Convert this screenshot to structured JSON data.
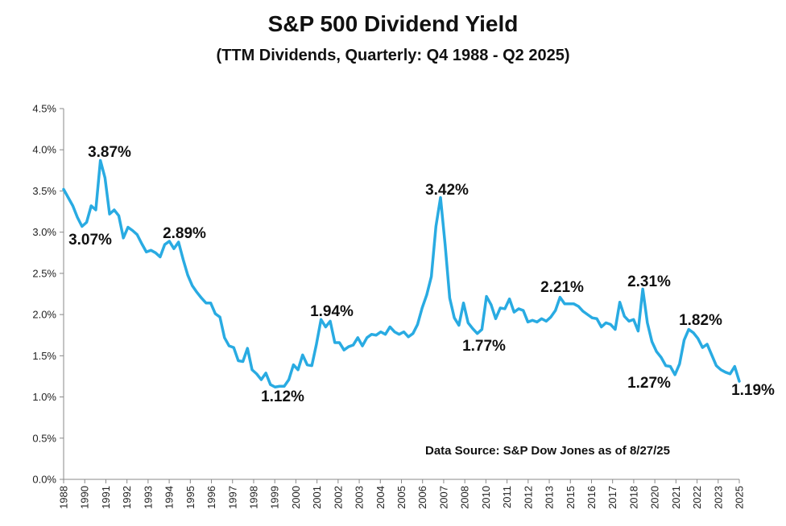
{
  "chart_data": {
    "type": "line",
    "title": "S&P 500 Dividend Yield",
    "subtitle": "(TTM Dividends, Quarterly: Q4 1988 - Q2 2025)",
    "xlabel": "",
    "ylabel": "",
    "ylim": [
      0,
      4.5
    ],
    "y_ticks": [
      "0.0%",
      "0.5%",
      "1.0%",
      "1.5%",
      "2.0%",
      "2.5%",
      "3.0%",
      "3.5%",
      "4.0%",
      "4.5%"
    ],
    "x_ticks": [
      "1988",
      "1990",
      "1991",
      "1992",
      "1993",
      "1994",
      "1995",
      "1996",
      "1997",
      "1998",
      "1999",
      "2000",
      "2001",
      "2002",
      "2003",
      "2004",
      "2005",
      "2006",
      "2007",
      "2008",
      "2010",
      "2011",
      "2012",
      "2013",
      "2015",
      "2016",
      "2017",
      "2018",
      "2020",
      "2021",
      "2022",
      "2023",
      "2025"
    ],
    "grid": false,
    "legend": "none",
    "line_color": "#29ABE2",
    "series": [
      {
        "values": [
          3.52,
          3.42,
          3.32,
          3.18,
          3.07,
          3.12,
          3.32,
          3.27,
          3.87,
          3.66,
          3.22,
          3.27,
          3.2,
          2.93,
          3.06,
          3.02,
          2.97,
          2.86,
          2.76,
          2.78,
          2.75,
          2.7,
          2.85,
          2.89,
          2.8,
          2.88,
          2.67,
          2.48,
          2.35,
          2.27,
          2.2,
          2.14,
          2.14,
          2.01,
          1.97,
          1.72,
          1.62,
          1.6,
          1.44,
          1.43,
          1.59,
          1.33,
          1.28,
          1.21,
          1.29,
          1.15,
          1.12,
          1.13,
          1.13,
          1.21,
          1.39,
          1.33,
          1.51,
          1.39,
          1.38,
          1.64,
          1.94,
          1.85,
          1.92,
          1.66,
          1.66,
          1.57,
          1.61,
          1.63,
          1.72,
          1.62,
          1.72,
          1.76,
          1.75,
          1.79,
          1.76,
          1.85,
          1.79,
          1.76,
          1.79,
          1.73,
          1.77,
          1.88,
          2.08,
          2.24,
          2.46,
          3.07,
          3.42,
          2.85,
          2.2,
          1.96,
          1.87,
          2.14,
          1.9,
          1.83,
          1.77,
          1.82,
          2.22,
          2.12,
          1.95,
          2.08,
          2.07,
          2.19,
          2.03,
          2.07,
          2.05,
          1.91,
          1.93,
          1.91,
          1.95,
          1.92,
          1.97,
          2.05,
          2.21,
          2.13,
          2.13,
          2.13,
          2.1,
          2.04,
          2.0,
          1.96,
          1.95,
          1.85,
          1.9,
          1.88,
          1.82,
          2.15,
          1.98,
          1.92,
          1.94,
          1.8,
          2.31,
          1.9,
          1.67,
          1.55,
          1.48,
          1.38,
          1.37,
          1.27,
          1.4,
          1.69,
          1.82,
          1.78,
          1.71,
          1.6,
          1.64,
          1.51,
          1.38,
          1.33,
          1.3,
          1.28,
          1.37,
          1.19
        ]
      }
    ],
    "annotations": [
      "3.87%",
      "3.07%",
      "2.89%",
      "1.12%",
      "1.94%",
      "3.42%",
      "1.77%",
      "2.21%",
      "2.31%",
      "1.82%",
      "1.27%",
      "1.19%"
    ],
    "source": "Data Source: S&P Dow Jones as of 8/27/25"
  }
}
